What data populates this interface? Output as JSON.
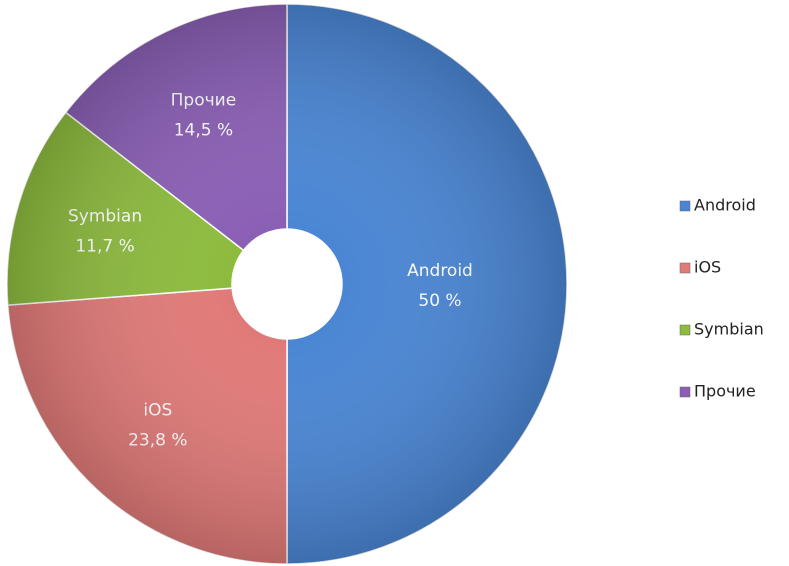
{
  "chart_data": {
    "type": "donut",
    "categories": [
      "Android",
      "iOS",
      "Symbian",
      "Прочие"
    ],
    "values": [
      50,
      23.8,
      11.7,
      14.5
    ],
    "value_labels": [
      "50 %",
      "23,8 %",
      "11,7 %",
      "14,5 %"
    ],
    "colors": [
      "#4a86d4",
      "#e07a78",
      "#8dbb3e",
      "#8a5fb5"
    ],
    "legend": "right"
  }
}
